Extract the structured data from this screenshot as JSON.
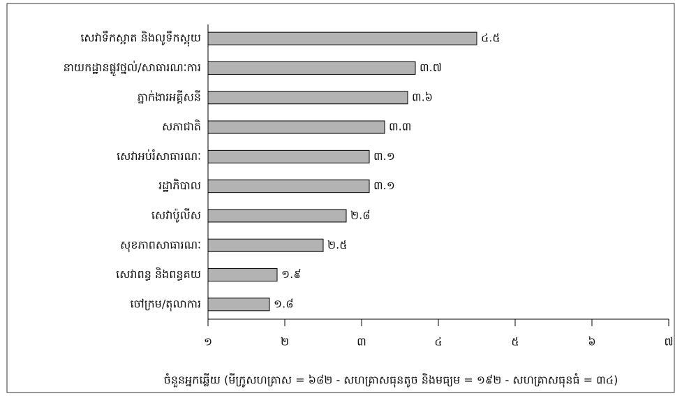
{
  "chart_data": {
    "type": "bar",
    "orientation": "horizontal",
    "x_label": "ចំនួនអ្នកឆ្លើយ (មីក្រូសហគ្រាស = ៦៨២ - សហគ្រាសធុនតូច និងមធ្យម = ១៩២ - សហគ្រាសធុនធំ = ៣៤)",
    "categories": [
      "សេវាទឹកស្អាត និងលូទឹកស្អុយ",
      "នាយកដ្ឋានផ្លូវថ្នល់/សាធារណៈការ",
      "ភ្នាក់ងារអគ្គីសនី",
      "សភាជាតិ",
      "សេវាអប់រំសាធារណៈ",
      "រដ្ឋាភិបាល",
      "សេវាប៉ូលីស",
      "សុខភាពសាធារណៈ",
      "សេវាពន្ធ និងពន្ធគយ",
      "ចៅក្រម/តុលាការ"
    ],
    "values": [
      4.5,
      3.7,
      3.6,
      3.3,
      3.1,
      3.1,
      2.8,
      2.5,
      1.9,
      1.8
    ],
    "value_labels": [
      "៤.៥",
      "៣.៧",
      "៣.៦",
      "៣.៣",
      "៣.១",
      "៣.១",
      "២.៨",
      "២.៥",
      "១.៩",
      "១.៨"
    ],
    "color": "#b3b3b3",
    "xlim": [
      1,
      7
    ],
    "xticks": [
      {
        "value": 1,
        "label": "១"
      },
      {
        "value": 2,
        "label": "២"
      },
      {
        "value": 3,
        "label": "៣"
      },
      {
        "value": 4,
        "label": "៤"
      },
      {
        "value": 5,
        "label": "៥"
      },
      {
        "value": 6,
        "label": "៦"
      },
      {
        "value": 7,
        "label": "៧"
      }
    ],
    "grid": false
  }
}
